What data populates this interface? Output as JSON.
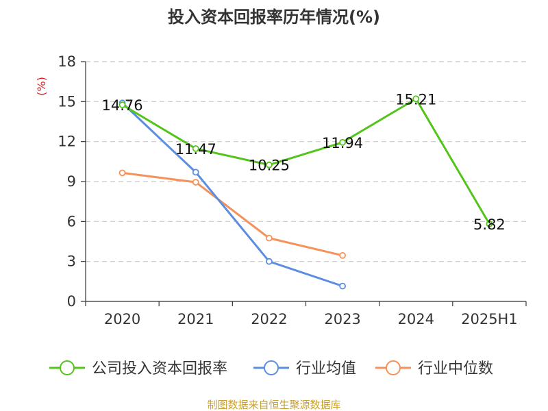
{
  "chart_data": {
    "type": "line",
    "title": "投入资本回报率历年情况(%)",
    "ylabel": "(%)",
    "xlabel": "",
    "categories": [
      "2020",
      "2021",
      "2022",
      "2023",
      "2024",
      "2025H1"
    ],
    "ylim": [
      0,
      18
    ],
    "yticks": [
      "0",
      "3",
      "6",
      "9",
      "12",
      "15",
      "18"
    ],
    "grid": true,
    "legend_position": "bottom",
    "series": [
      {
        "name": "公司投入资本回报率",
        "color": "#52c41a",
        "values": [
          14.76,
          11.47,
          10.25,
          11.94,
          15.21,
          5.82
        ],
        "labels": [
          "14.76",
          "11.47",
          "10.25",
          "11.94",
          "15.21",
          "5.82"
        ]
      },
      {
        "name": "行业均值",
        "color": "#5b8ee0",
        "values": [
          14.9,
          9.7,
          3.0,
          1.15,
          null,
          null
        ],
        "labels": []
      },
      {
        "name": "行业中位数",
        "color": "#f5915a",
        "values": [
          9.65,
          8.95,
          4.75,
          3.45,
          null,
          null
        ],
        "labels": []
      }
    ],
    "source": "制图数据来自恒生聚源数据库"
  }
}
